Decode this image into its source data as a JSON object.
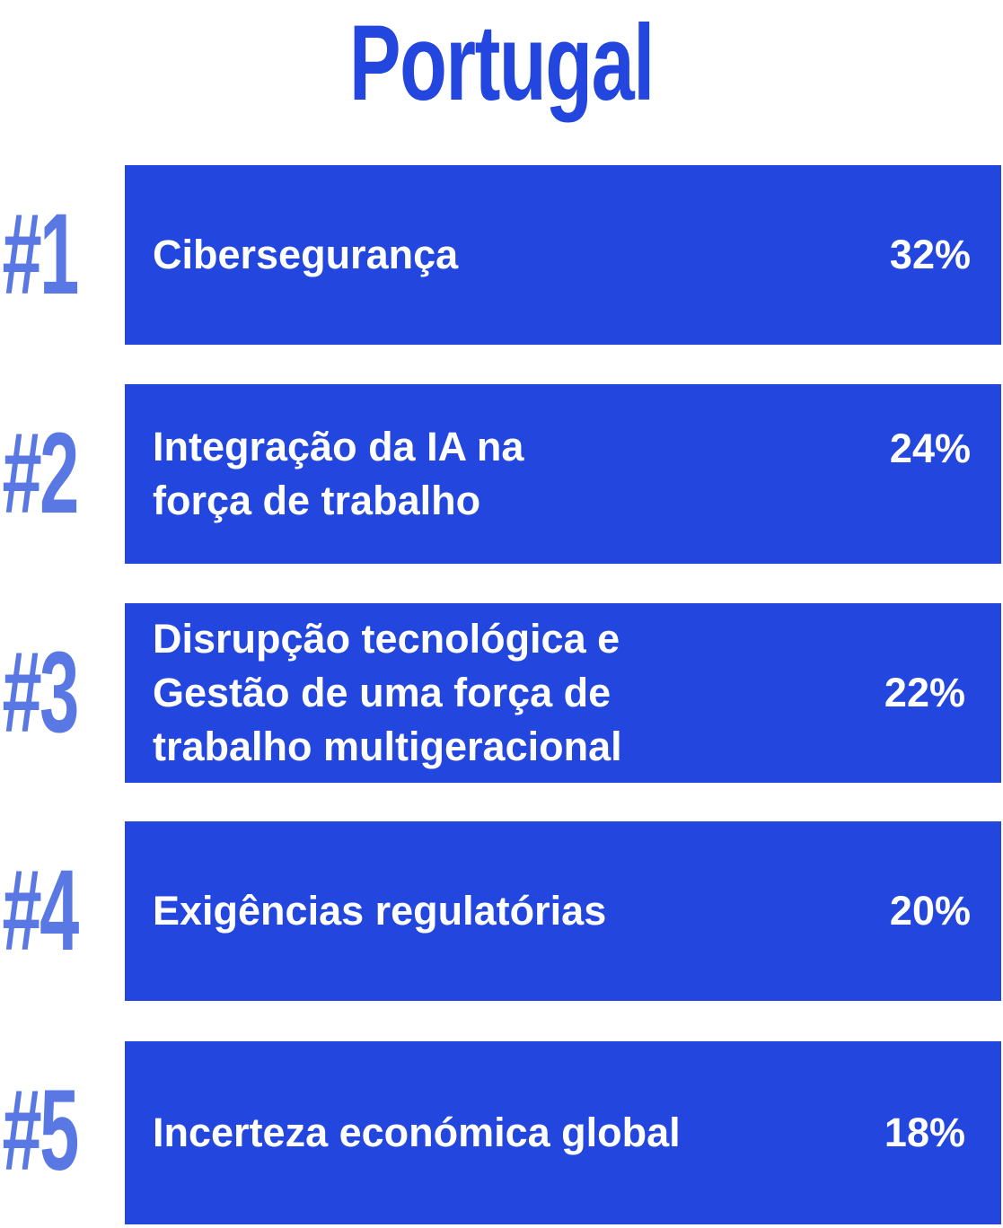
{
  "title": "Portugal",
  "items": [
    {
      "rank": "#1",
      "label": "Cibersegurança",
      "value": "32%"
    },
    {
      "rank": "#2",
      "label": "Integração da IA na\nforça de trabalho",
      "value": "24%"
    },
    {
      "rank": "#3",
      "label": "Disrupção tecnológica e\nGestão de uma força de\ntrabalho multigeracional",
      "value": "22%"
    },
    {
      "rank": "#4",
      "label": "Exigências regulatórias",
      "value": "20%"
    },
    {
      "rank": "#5",
      "label": "Incerteza económica global",
      "value": "18%"
    }
  ],
  "colors": {
    "bar": "#2246de",
    "rank": "#5a78e4",
    "title": "#2246de",
    "text": "#ffffff"
  }
}
